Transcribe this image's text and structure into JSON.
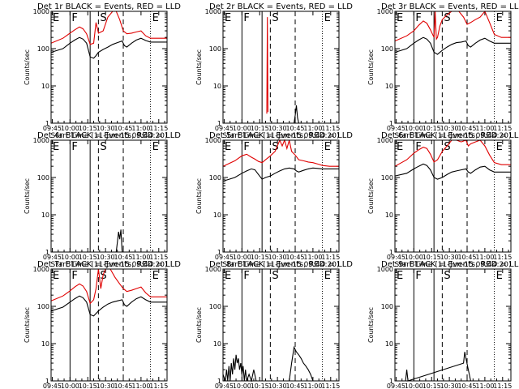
{
  "chart_data": {
    "type": "line",
    "shared": {
      "x_tick_labels": [
        "09:45",
        "10:00",
        "10:15",
        "10:30",
        "10:45",
        "11:00",
        "11:15"
      ],
      "xlabel": "Start Time (11-Jun-15 09:44:20)",
      "ylabel": "Counts/sec",
      "y_scale": "log",
      "ylim": [
        1,
        1000
      ],
      "y_tick_labels": [
        "1",
        "10",
        "100",
        "1000"
      ],
      "series_colors": {
        "events": "#000000",
        "lld": "#e00000"
      },
      "x_minutes_range": [
        0,
        98
      ],
      "vertical_markers": [
        {
          "label": "E",
          "t": 0,
          "style": "dotted"
        },
        {
          "label": "F",
          "t": 16,
          "style": "solid"
        },
        {
          "label": "",
          "t": 33,
          "style": "solid"
        },
        {
          "label": "S",
          "t": 40,
          "style": "dashed"
        },
        {
          "label": "",
          "t": 61,
          "style": "dashed"
        },
        {
          "label": "E",
          "t": 84,
          "style": "dotted"
        }
      ]
    },
    "panels": [
      {
        "title": "Det 1r BLACK = Events, RED = LLD",
        "events": [
          [
            0,
            80
          ],
          [
            10,
            100
          ],
          [
            16,
            140
          ],
          [
            20,
            170
          ],
          [
            24,
            200
          ],
          [
            27,
            180
          ],
          [
            30,
            140
          ],
          [
            33,
            60
          ],
          [
            36,
            55
          ],
          [
            38,
            65
          ],
          [
            40,
            80
          ],
          [
            44,
            95
          ],
          [
            48,
            110
          ],
          [
            52,
            130
          ],
          [
            56,
            145
          ],
          [
            60,
            160
          ],
          [
            62,
            120
          ],
          [
            64,
            110
          ],
          [
            68,
            140
          ],
          [
            72,
            170
          ],
          [
            76,
            190
          ],
          [
            80,
            165
          ],
          [
            84,
            150
          ],
          [
            90,
            150
          ],
          [
            98,
            150
          ]
        ],
        "lld": [
          [
            0,
            140
          ],
          [
            10,
            190
          ],
          [
            16,
            260
          ],
          [
            20,
            320
          ],
          [
            24,
            380
          ],
          [
            27,
            340
          ],
          [
            30,
            250
          ],
          [
            33,
            130
          ],
          [
            36,
            140
          ],
          [
            38,
            500
          ],
          [
            40,
            260
          ],
          [
            44,
            300
          ],
          [
            48,
            700
          ],
          [
            52,
            1000
          ],
          [
            55,
            1000
          ],
          [
            58,
            600
          ],
          [
            61,
            300
          ],
          [
            64,
            250
          ],
          [
            68,
            260
          ],
          [
            72,
            280
          ],
          [
            76,
            300
          ],
          [
            80,
            220
          ],
          [
            84,
            190
          ],
          [
            90,
            190
          ],
          [
            98,
            190
          ]
        ]
      },
      {
        "title": "Det 2r BLACK = Events, RED = LLD",
        "events": [
          [
            60,
            1
          ],
          [
            61,
            1.6
          ],
          [
            62,
            3
          ],
          [
            63,
            1.4
          ],
          [
            64,
            1
          ]
        ],
        "lld": [
          [
            37,
            1.8
          ],
          [
            37.5,
            700
          ],
          [
            38,
            2
          ]
        ]
      },
      {
        "title": "Det 3r BLACK = Events, RED = LLD",
        "events": [
          [
            0,
            80
          ],
          [
            10,
            100
          ],
          [
            16,
            140
          ],
          [
            20,
            170
          ],
          [
            24,
            200
          ],
          [
            27,
            180
          ],
          [
            30,
            140
          ],
          [
            33,
            80
          ],
          [
            36,
            70
          ],
          [
            40,
            90
          ],
          [
            44,
            110
          ],
          [
            48,
            130
          ],
          [
            52,
            145
          ],
          [
            56,
            150
          ],
          [
            60,
            160
          ],
          [
            62,
            120
          ],
          [
            64,
            110
          ],
          [
            68,
            140
          ],
          [
            72,
            170
          ],
          [
            76,
            190
          ],
          [
            80,
            160
          ],
          [
            84,
            140
          ],
          [
            90,
            140
          ],
          [
            98,
            140
          ]
        ],
        "lld": [
          [
            0,
            160
          ],
          [
            10,
            220
          ],
          [
            16,
            300
          ],
          [
            20,
            420
          ],
          [
            24,
            550
          ],
          [
            27,
            480
          ],
          [
            30,
            320
          ],
          [
            33,
            200
          ],
          [
            34,
            1000
          ],
          [
            35,
            180
          ],
          [
            36,
            200
          ],
          [
            38,
            400
          ],
          [
            40,
            600
          ],
          [
            44,
            800
          ],
          [
            48,
            1000
          ],
          [
            54,
            1000
          ],
          [
            58,
            700
          ],
          [
            61,
            450
          ],
          [
            64,
            500
          ],
          [
            68,
            600
          ],
          [
            72,
            700
          ],
          [
            76,
            1000
          ],
          [
            80,
            500
          ],
          [
            84,
            240
          ],
          [
            90,
            200
          ],
          [
            98,
            200
          ]
        ]
      },
      {
        "title": "Det 4r BLACK = Events, RED = LLD",
        "events": [
          [
            55,
            1
          ],
          [
            56,
            1.8
          ],
          [
            57,
            3.5
          ],
          [
            58,
            2.2
          ],
          [
            59,
            4
          ],
          [
            60,
            1
          ]
        ],
        "lld": []
      },
      {
        "title": "Det 5r BLACK = Events, RED = LLD",
        "events": [
          [
            0,
            80
          ],
          [
            10,
            100
          ],
          [
            16,
            130
          ],
          [
            20,
            150
          ],
          [
            24,
            170
          ],
          [
            27,
            160
          ],
          [
            30,
            120
          ],
          [
            33,
            90
          ],
          [
            36,
            100
          ],
          [
            40,
            110
          ],
          [
            44,
            130
          ],
          [
            48,
            150
          ],
          [
            52,
            170
          ],
          [
            56,
            180
          ],
          [
            60,
            170
          ],
          [
            62,
            150
          ],
          [
            64,
            140
          ],
          [
            68,
            155
          ],
          [
            72,
            170
          ],
          [
            76,
            180
          ],
          [
            80,
            175
          ],
          [
            84,
            170
          ],
          [
            90,
            170
          ],
          [
            98,
            170
          ]
        ],
        "lld": [
          [
            0,
            200
          ],
          [
            10,
            280
          ],
          [
            16,
            380
          ],
          [
            20,
            420
          ],
          [
            24,
            350
          ],
          [
            27,
            310
          ],
          [
            30,
            270
          ],
          [
            33,
            250
          ],
          [
            36,
            300
          ],
          [
            40,
            380
          ],
          [
            44,
            500
          ],
          [
            48,
            1000
          ],
          [
            50,
            700
          ],
          [
            52,
            1000
          ],
          [
            54,
            600
          ],
          [
            56,
            1000
          ],
          [
            58,
            500
          ],
          [
            61,
            400
          ],
          [
            64,
            300
          ],
          [
            68,
            280
          ],
          [
            72,
            260
          ],
          [
            76,
            250
          ],
          [
            80,
            230
          ],
          [
            84,
            210
          ],
          [
            90,
            200
          ],
          [
            98,
            200
          ]
        ]
      },
      {
        "title": "Det 6r BLACK = Events, RED = LLD",
        "events": [
          [
            0,
            110
          ],
          [
            10,
            130
          ],
          [
            16,
            170
          ],
          [
            20,
            200
          ],
          [
            24,
            230
          ],
          [
            27,
            210
          ],
          [
            30,
            160
          ],
          [
            33,
            100
          ],
          [
            36,
            90
          ],
          [
            40,
            100
          ],
          [
            44,
            120
          ],
          [
            48,
            140
          ],
          [
            52,
            150
          ],
          [
            56,
            160
          ],
          [
            60,
            170
          ],
          [
            62,
            140
          ],
          [
            64,
            130
          ],
          [
            68,
            160
          ],
          [
            72,
            190
          ],
          [
            76,
            200
          ],
          [
            80,
            160
          ],
          [
            84,
            140
          ],
          [
            90,
            140
          ],
          [
            98,
            140
          ]
        ],
        "lld": [
          [
            0,
            200
          ],
          [
            10,
            300
          ],
          [
            16,
            450
          ],
          [
            20,
            550
          ],
          [
            24,
            650
          ],
          [
            27,
            600
          ],
          [
            30,
            420
          ],
          [
            33,
            260
          ],
          [
            36,
            300
          ],
          [
            40,
            500
          ],
          [
            44,
            700
          ],
          [
            48,
            1000
          ],
          [
            52,
            1000
          ],
          [
            56,
            900
          ],
          [
            60,
            1000
          ],
          [
            62,
            700
          ],
          [
            64,
            800
          ],
          [
            68,
            900
          ],
          [
            72,
            1000
          ],
          [
            76,
            700
          ],
          [
            80,
            400
          ],
          [
            84,
            250
          ],
          [
            90,
            220
          ],
          [
            98,
            220
          ]
        ]
      },
      {
        "title": "Det 7r BLACK = Events, RED = LLD",
        "events": [
          [
            0,
            75
          ],
          [
            10,
            95
          ],
          [
            16,
            130
          ],
          [
            20,
            160
          ],
          [
            24,
            190
          ],
          [
            27,
            170
          ],
          [
            30,
            130
          ],
          [
            33,
            60
          ],
          [
            36,
            55
          ],
          [
            40,
            75
          ],
          [
            44,
            95
          ],
          [
            48,
            115
          ],
          [
            52,
            130
          ],
          [
            56,
            140
          ],
          [
            60,
            150
          ],
          [
            62,
            110
          ],
          [
            64,
            100
          ],
          [
            68,
            130
          ],
          [
            72,
            160
          ],
          [
            76,
            180
          ],
          [
            80,
            150
          ],
          [
            84,
            130
          ],
          [
            90,
            130
          ],
          [
            98,
            130
          ]
        ],
        "lld": [
          [
            0,
            140
          ],
          [
            10,
            190
          ],
          [
            16,
            260
          ],
          [
            20,
            330
          ],
          [
            24,
            400
          ],
          [
            27,
            350
          ],
          [
            30,
            250
          ],
          [
            33,
            120
          ],
          [
            36,
            150
          ],
          [
            38,
            300
          ],
          [
            40,
            1000
          ],
          [
            42,
            300
          ],
          [
            44,
            700
          ],
          [
            46,
            1000
          ],
          [
            50,
            1000
          ],
          [
            54,
            600
          ],
          [
            58,
            400
          ],
          [
            61,
            300
          ],
          [
            64,
            250
          ],
          [
            68,
            270
          ],
          [
            72,
            300
          ],
          [
            76,
            330
          ],
          [
            80,
            230
          ],
          [
            84,
            180
          ],
          [
            90,
            180
          ],
          [
            98,
            180
          ]
        ]
      },
      {
        "title": "Det 8r BLACK = Events, RED = LLD",
        "events": [
          [
            0,
            1.5
          ],
          [
            2,
            1
          ],
          [
            3,
            2
          ],
          [
            4,
            1
          ],
          [
            5,
            2.5
          ],
          [
            6,
            1
          ],
          [
            7,
            3
          ],
          [
            8,
            1.5
          ],
          [
            9,
            4
          ],
          [
            10,
            2
          ],
          [
            11,
            5
          ],
          [
            12,
            3
          ],
          [
            13,
            4
          ],
          [
            14,
            2
          ],
          [
            15,
            3
          ],
          [
            16,
            1.5
          ],
          [
            17,
            2.5
          ],
          [
            18,
            1
          ],
          [
            19,
            2
          ],
          [
            20,
            1
          ],
          [
            22,
            1.5
          ],
          [
            24,
            1
          ],
          [
            26,
            2
          ],
          [
            28,
            1
          ],
          [
            56,
            1
          ],
          [
            58,
            3
          ],
          [
            60,
            8
          ],
          [
            62,
            6
          ],
          [
            64,
            5
          ],
          [
            66,
            4
          ],
          [
            68,
            3
          ],
          [
            70,
            2.5
          ],
          [
            72,
            2
          ],
          [
            74,
            1.5
          ],
          [
            76,
            1
          ]
        ],
        "lld": []
      },
      {
        "title": "Det 9r BLACK = Events, RED = LLD",
        "events": [
          [
            9,
            1
          ],
          [
            10,
            2
          ],
          [
            11,
            1
          ],
          [
            58,
            3
          ],
          [
            59,
            6
          ],
          [
            60,
            4
          ],
          [
            62,
            2
          ],
          [
            64,
            1
          ]
        ],
        "lld": []
      }
    ]
  }
}
